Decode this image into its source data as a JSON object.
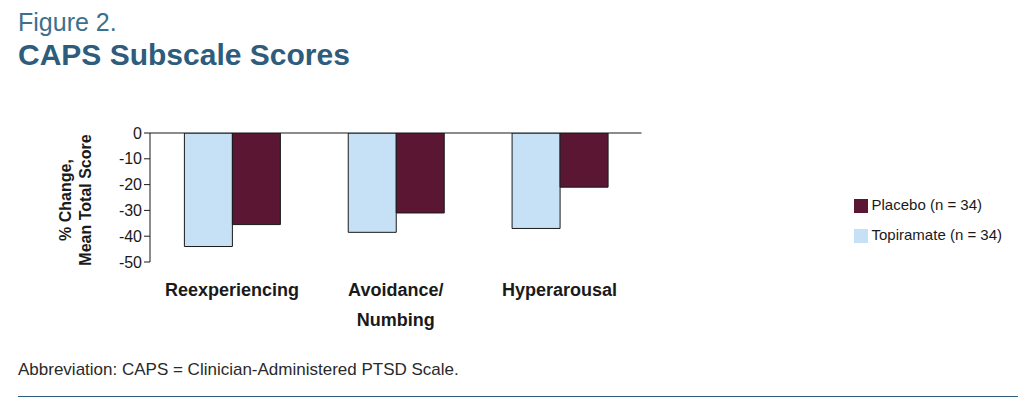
{
  "title": "Figure 2.",
  "subtitle": "CAPS Subscale Scores",
  "footnote": "Abbreviation: CAPS = Clinician-Administered PTSD Scale.",
  "chart_data": {
    "type": "bar",
    "y_label": "% Change,\nMean Total Score",
    "categories": [
      "Reexperiencing",
      "Avoidance/\nNumbing",
      "Hyperarousal"
    ],
    "series": [
      {
        "name": "Topiramate (n = 34)",
        "color": "#c6e0f5",
        "values": [
          -44,
          -38.5,
          -37
        ]
      },
      {
        "name": "Placebo (n = 34)",
        "color": "#5a1632",
        "values": [
          -35.5,
          -31,
          -21
        ]
      }
    ],
    "ylim": [
      -50,
      0
    ],
    "yticks": [
      -50,
      -40,
      -30,
      -20,
      -10,
      0
    ],
    "grid": false,
    "legend": "right"
  }
}
